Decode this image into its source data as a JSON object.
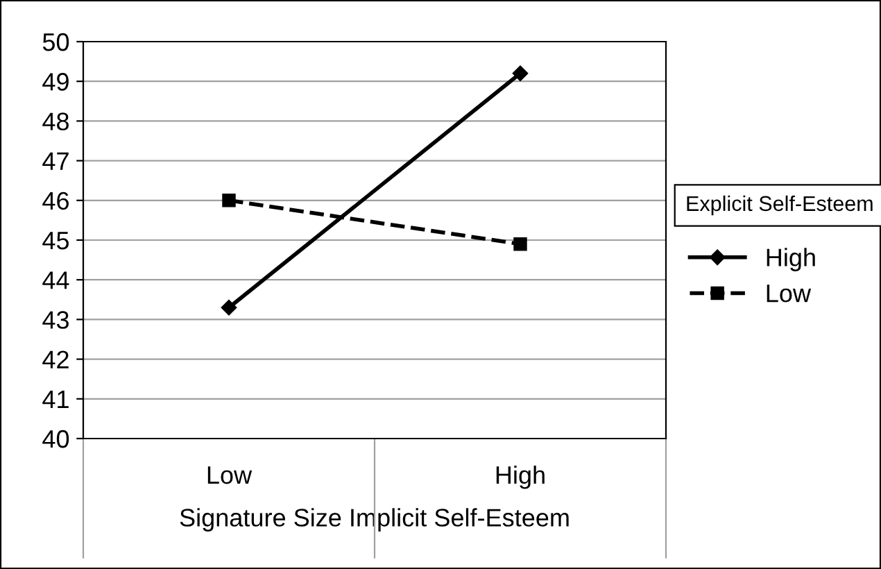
{
  "chart_data": {
    "type": "line",
    "xlabel": "Signature Size Implicit Self-Esteem",
    "legend_title": "Explicit Self-Esteem",
    "categories": [
      "Low",
      "High"
    ],
    "series": [
      {
        "name": "High",
        "color": "#000000",
        "values": [
          43.3,
          49.2
        ],
        "marker": "diamond",
        "line_style": "solid"
      },
      {
        "name": "Low",
        "color": "#000000",
        "values": [
          46.0,
          44.9
        ],
        "marker": "square",
        "line_style": "dashed"
      }
    ],
    "ylim": [
      40,
      50
    ],
    "yticks": [
      40,
      41,
      42,
      43,
      44,
      45,
      46,
      47,
      48,
      49,
      50
    ],
    "grid": "y",
    "legend": "right"
  }
}
